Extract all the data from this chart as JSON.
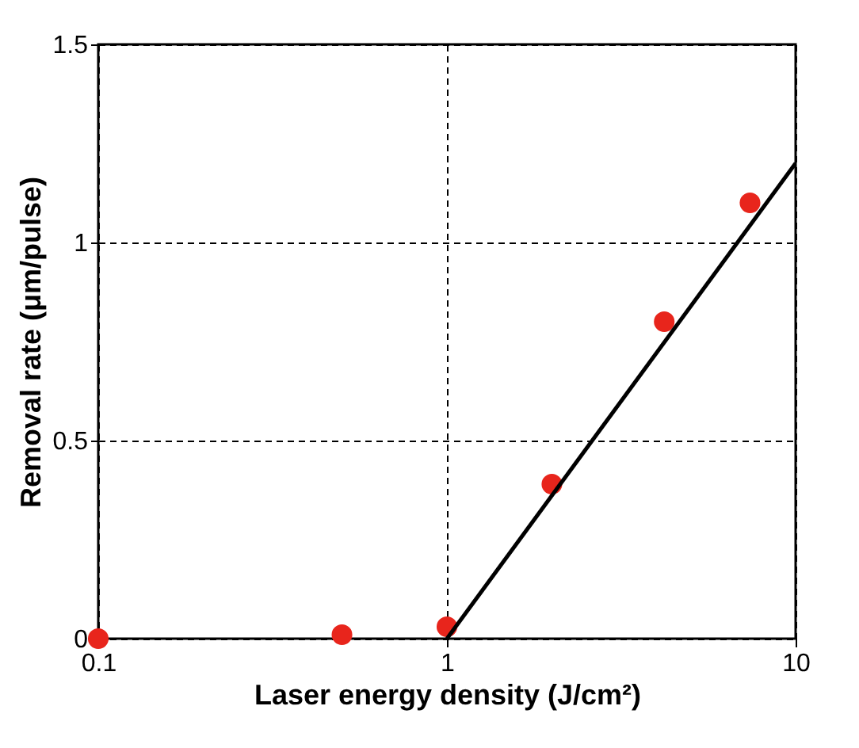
{
  "chart_data": {
    "type": "scatter",
    "xlabel": "Laser energy density (J/cm²)",
    "ylabel": "Removal rate (μm/pulse)",
    "log": "x",
    "xlim": [
      0.1,
      10
    ],
    "ylim": [
      0,
      1.5
    ],
    "xticks": [
      0.1,
      1,
      10
    ],
    "yticks": [
      0,
      0.5,
      1,
      1.5
    ],
    "grid": true,
    "series": [
      {
        "color": "#e8251c",
        "marker": "circle",
        "x": [
          0.1,
          0.5,
          1,
          2,
          4.2,
          7.4
        ],
        "values": [
          0,
          0.01,
          0.03,
          0.39,
          0.8,
          1.1
        ]
      },
      {
        "type": "line",
        "color": "#000000",
        "x": [
          1,
          10
        ],
        "values": [
          0,
          1.2
        ]
      }
    ]
  }
}
